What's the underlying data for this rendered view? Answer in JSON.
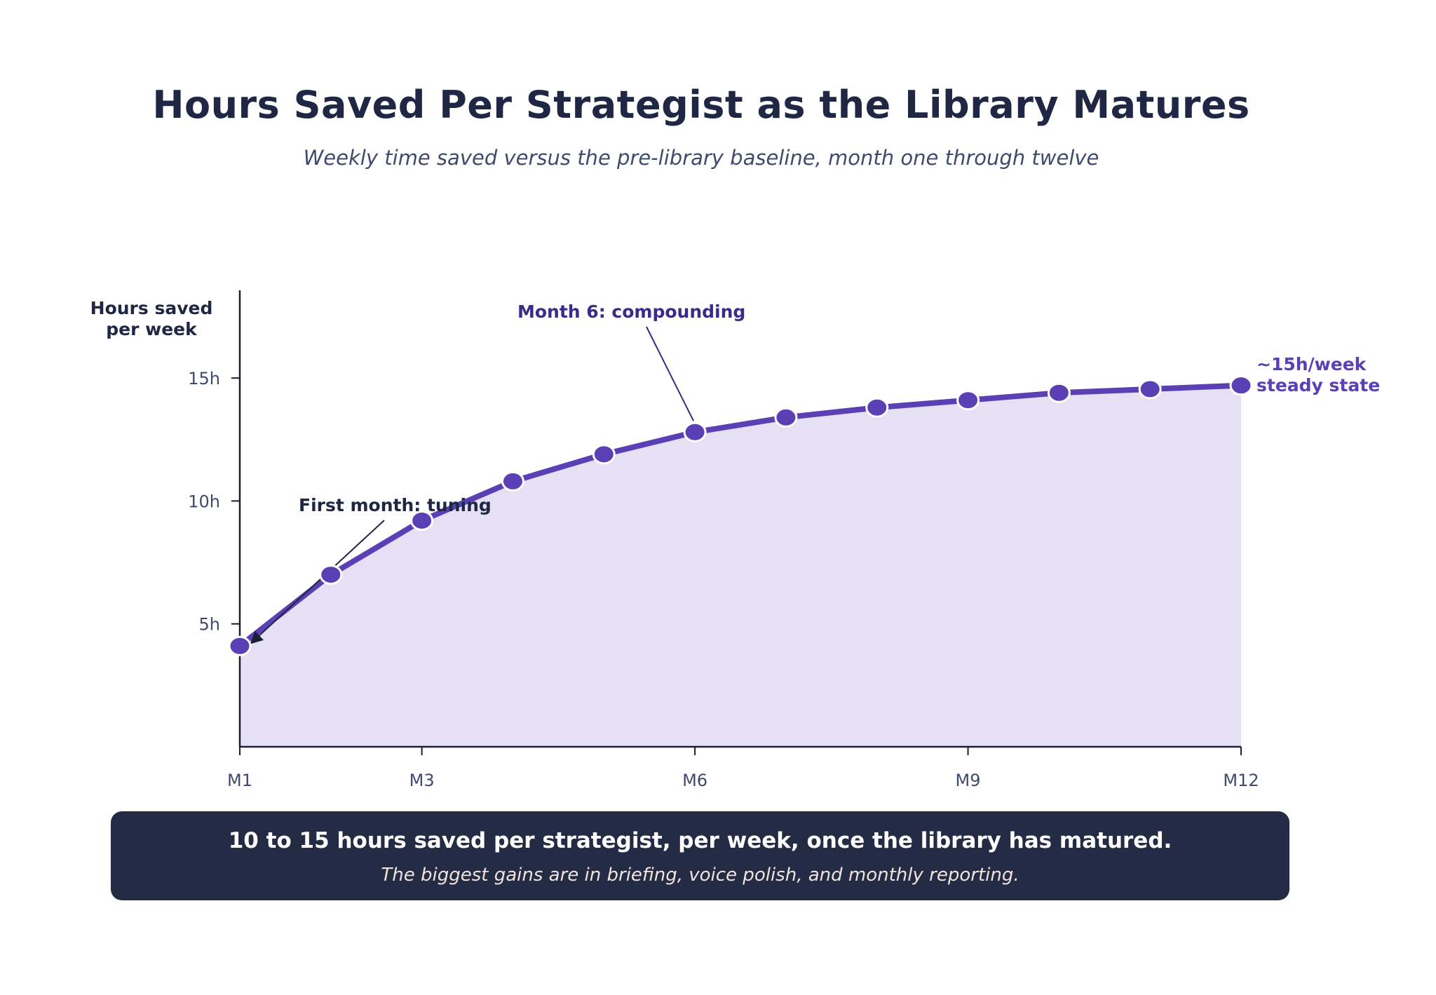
{
  "chart_data": {
    "type": "area",
    "title": "Hours Saved Per Strategist as the Library Matures",
    "subtitle": "Weekly time saved versus the pre-library baseline, month one through twelve",
    "ylabel_lines": [
      "Hours saved",
      "per week"
    ],
    "x": [
      1,
      2,
      3,
      4,
      5,
      6,
      7,
      8,
      9,
      10,
      11,
      12
    ],
    "series": [
      {
        "values": [
          4.1,
          7.0,
          9.2,
          10.8,
          11.9,
          12.8,
          13.4,
          13.8,
          14.1,
          14.4,
          14.55,
          14.7
        ]
      }
    ],
    "xticks": [
      {
        "value": 1,
        "label": "M1"
      },
      {
        "value": 3,
        "label": "M3"
      },
      {
        "value": 6,
        "label": "M6"
      },
      {
        "value": 9,
        "label": "M9"
      },
      {
        "value": 12,
        "label": "M12"
      }
    ],
    "yticks": [
      {
        "value": 5,
        "label": "5h"
      },
      {
        "value": 10,
        "label": "10h"
      },
      {
        "value": 15,
        "label": "15h"
      }
    ],
    "xlim": [
      1,
      12
    ],
    "ylim": [
      0,
      18
    ],
    "grid": false,
    "annotations": [
      {
        "text": "First month: tuning",
        "target_x": 1,
        "target_y": 4.1
      },
      {
        "text": "Month 6: compounding",
        "target_x": 6,
        "target_y": 12.8
      }
    ],
    "end_label_lines": [
      "~15h/week",
      "steady state"
    ],
    "colors": {
      "line": "#5b3fb5",
      "fill": "#e6e0f4",
      "axis": "#1a1f36",
      "tick_label": "#3f4a6e",
      "annotation_dark": "#1f2744",
      "annotation_purple": "#3a2a8c",
      "end_label": "#5b3fb5"
    }
  },
  "callout": {
    "headline": "10 to 15 hours saved per strategist, per week, once the library has matured.",
    "detail": "The biggest gains are in briefing, voice polish, and monthly reporting."
  }
}
